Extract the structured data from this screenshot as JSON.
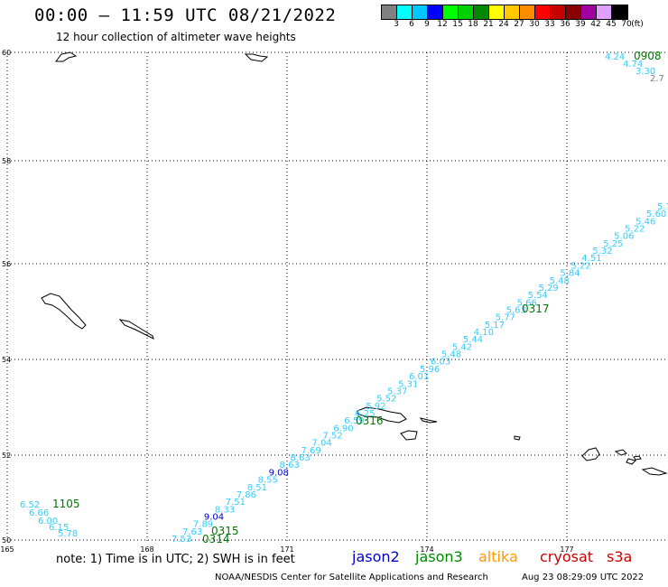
{
  "header": {
    "title": "00:00 — 11:59 UTC 08/21/2022",
    "subtitle": "12 hour collection of altimeter wave heights"
  },
  "legend": {
    "swatches": [
      {
        "label": "3",
        "color": "#808080"
      },
      {
        "label": "6",
        "color": "#00ffff"
      },
      {
        "label": "9",
        "color": "#00c8ff"
      },
      {
        "label": "12",
        "color": "#0000ff"
      },
      {
        "label": "15",
        "color": "#00ff00"
      },
      {
        "label": "18",
        "color": "#00d000"
      },
      {
        "label": "21",
        "color": "#008800"
      },
      {
        "label": "24",
        "color": "#ffff00"
      },
      {
        "label": "27",
        "color": "#ffc800"
      },
      {
        "label": "30",
        "color": "#ff8c00"
      },
      {
        "label": "33",
        "color": "#ff0000"
      },
      {
        "label": "36",
        "color": "#c80000"
      },
      {
        "label": "39",
        "color": "#8b0000"
      },
      {
        "label": "42",
        "color": "#a000a0"
      },
      {
        "label": "45",
        "color": "#e0a0ff"
      },
      {
        "label": "70",
        "color": "#000000"
      }
    ],
    "unit": "(ft)"
  },
  "map": {
    "lon_ticks": [
      "165",
      "168",
      "171",
      "174",
      "177"
    ],
    "lat_ticks": [
      "60",
      "58",
      "56",
      "54",
      "52",
      "50"
    ],
    "gridline_color": "#000000",
    "coastline_color": "#000000",
    "track_colors": {
      "light": "#33ccff",
      "dark": "#0000cc",
      "time": "#007700",
      "gray": "#808080"
    },
    "track_labels_main": [
      "7.53",
      "7.63",
      "7.89",
      "9.04",
      "8.33",
      "7.51",
      "7.86",
      "8.51",
      "8.55",
      "9.08",
      "8.63",
      "8.63",
      "7.69",
      "7.04",
      "7.52",
      "6.90",
      "6.59",
      "6.25",
      "5.92",
      "5.52",
      "5.37",
      "5.31",
      "6.01",
      "5.96",
      "6.03",
      "5.48",
      "5.42",
      "5.44",
      "4.10",
      "5.17",
      "5.77",
      "5.63",
      "5.66",
      "5.54",
      "5.29",
      "5.48",
      "5.84",
      "5.22",
      "4.51",
      "5.32",
      "5.25",
      "5.06",
      "5.22",
      "5.46",
      "5.60",
      "5.70"
    ],
    "track_labels_main_dark": [
      3,
      9
    ],
    "track_labels_left": [
      "6.52",
      "6.66",
      "6.00",
      "6.15",
      "5.78"
    ],
    "track_labels_top": [
      "4.24",
      "4.74",
      "3.30",
      "2.7"
    ],
    "time_labels": [
      "1105",
      "0315",
      "0314",
      "0316",
      "0317",
      "0908"
    ]
  },
  "footer": {
    "note": "note: 1) Time is in UTC; 2) SWH is in feet",
    "satellites": [
      {
        "name": "jason2",
        "color": "#0000cc"
      },
      {
        "name": "jason3",
        "color": "#008800"
      },
      {
        "name": "altika",
        "color": "#ff9900"
      },
      {
        "name": "cryosat",
        "color": "#cc0000"
      },
      {
        "name": "s3a",
        "color": "#cc0000"
      }
    ],
    "credit": "NOAA/NESDIS Center for Satellite Applications and Research",
    "stamp": "Aug 23 08:29:09 UTC 2022"
  }
}
